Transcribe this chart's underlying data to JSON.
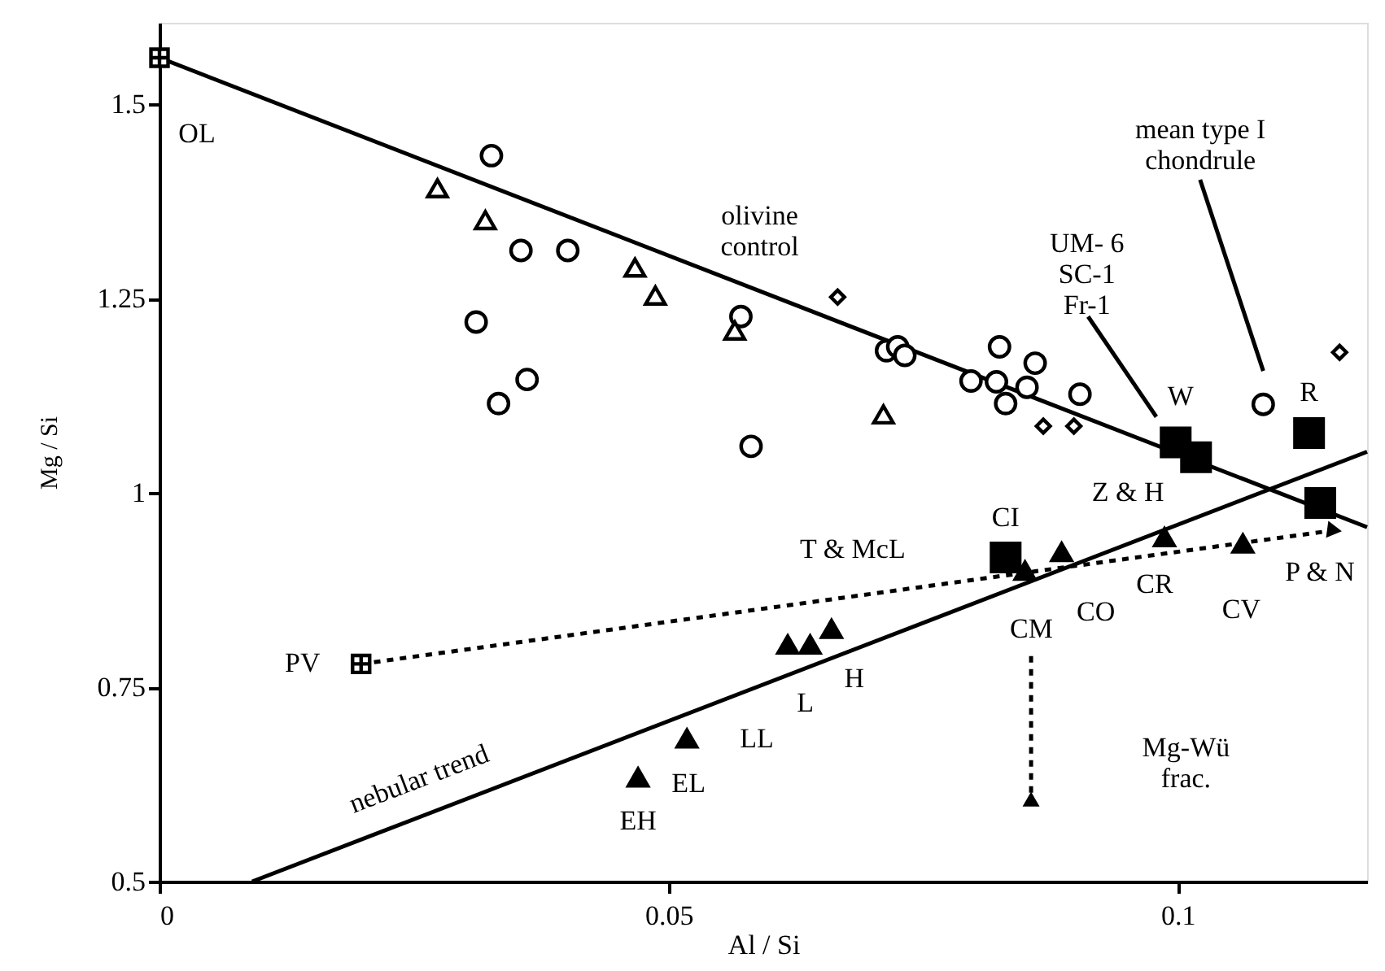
{
  "chart_data": {
    "type": "scatter",
    "xlabel": "Al / Si",
    "ylabel": "Mg / Si",
    "xlim": [
      0,
      0.1186
    ],
    "ylim": [
      0.5,
      1.605
    ],
    "xticks": [
      0,
      0.05,
      0.1
    ],
    "yticks": [
      0.5,
      0.75,
      1,
      1.25,
      1.5
    ],
    "grid": false,
    "annotations": [
      {
        "text": "OL",
        "x": 0,
        "y": 1.56
      },
      "olivine\ncontrol",
      "UM- 6\nSC-1\nFr-1",
      "mean type I\nchondrule",
      {
        "text": "W",
        "x": 0.0998,
        "y": 1.065
      },
      {
        "text": "R",
        "x": 0.1129,
        "y": 1.077
      },
      "Z & H",
      {
        "text": "CI",
        "x": 0.0831,
        "y": 0.917
      },
      "T & McL",
      {
        "text": "PV",
        "x": 0.0198,
        "y": 0.78
      },
      "nebular trend",
      {
        "text": "EH",
        "x": 0.047,
        "y": 0.634
      },
      {
        "text": "EL",
        "x": 0.0518,
        "y": 0.684
      },
      {
        "text": "LL",
        "x": 0.0617,
        "y": 0.805
      },
      {
        "text": "L",
        "x": 0.0639,
        "y": 0.805
      },
      {
        "text": "H",
        "x": 0.066,
        "y": 0.825
      },
      {
        "text": "CM",
        "x": 0.085,
        "y": 0.9
      },
      {
        "text": "CO",
        "x": 0.0886,
        "y": 0.924
      },
      {
        "text": "CR",
        "x": 0.0987,
        "y": 0.943
      },
      {
        "text": "CV",
        "x": 0.1064,
        "y": 0.935
      },
      {
        "text": "P & N",
        "x": 0.1154,
        "y": 0.952
      },
      "Mg-Wü\nfrac."
    ],
    "series": [
      {
        "type": "line",
        "color": "#000000",
        "line_style": "solid",
        "x": [
          0,
          0.1186
        ],
        "values": [
          1.56,
          0.956
        ]
      },
      {
        "type": "line",
        "color": "#000000",
        "line_style": "solid",
        "x": [
          0.0091,
          0.1186
        ],
        "values": [
          0.5,
          1.053
        ]
      },
      {
        "type": "line",
        "color": "#000000",
        "line_style": "dotted",
        "x": [
          0.0198,
          0.1154
        ],
        "values": [
          0.78,
          0.952
        ]
      },
      {
        "type": "line",
        "color": "#000000",
        "line_style": "dotted",
        "x": [
          0.0856,
          0.0856
        ],
        "values": [
          0.79,
          0.606
        ]
      },
      {
        "type": "line",
        "color": "#000000",
        "line_style": "solid",
        "x": [
          0.0912,
          0.0979
        ],
        "values": [
          1.227,
          1.098
        ]
      },
      {
        "type": "line",
        "color": "#000000",
        "line_style": "solid",
        "x": [
          0.1022,
          0.1084
        ],
        "values": [
          1.403,
          1.157
        ]
      },
      {
        "type": "scatter",
        "color": "#ffffff",
        "marker": "cross",
        "x": [
          0,
          0.0198
        ],
        "values": [
          1.56,
          0.78
        ]
      },
      {
        "type": "scatter",
        "color": "#ffffff",
        "marker": "circle",
        "x": [
          0.0326,
          0.0355,
          0.0401,
          0.0311,
          0.0571,
          0.0361,
          0.0333,
          0.0581,
          0.0714,
          0.0725,
          0.0732,
          0.0825,
          0.0797,
          0.0822,
          0.086,
          0.0831,
          0.0852,
          0.0904
        ],
        "values": [
          1.434,
          1.312,
          1.312,
          1.22,
          1.227,
          1.146,
          1.115,
          1.06,
          1.183,
          1.188,
          1.177,
          1.188,
          1.144,
          1.143,
          1.167,
          1.115,
          1.136,
          1.127
        ]
      },
      {
        "type": "scatter",
        "color": "#ffffff",
        "marker": "triangle",
        "x": [
          0.0273,
          0.032,
          0.0467,
          0.0487,
          0.0565,
          0.0711
        ],
        "values": [
          1.392,
          1.351,
          1.29,
          1.254,
          1.209,
          1.101
        ]
      },
      {
        "type": "scatter",
        "color": "#000000",
        "marker": "triangle",
        "x": [
          0.047,
          0.0518,
          0.0617,
          0.0639,
          0.066,
          0.085,
          0.0886,
          0.0987,
          0.1064
        ],
        "values": [
          0.634,
          0.684,
          0.805,
          0.805,
          0.825,
          0.9,
          0.924,
          0.943,
          0.935
        ]
      },
      {
        "type": "scatter",
        "color": "#000000",
        "marker": "square",
        "x": [
          0.0831,
          0.0998,
          0.1018,
          0.1129,
          0.114
        ],
        "values": [
          0.917,
          1.065,
          1.046,
          1.077,
          0.987
        ]
      },
      {
        "type": "scatter",
        "color": "#ffffff",
        "marker": "diamond",
        "x": [
          0.0666,
          0.0868,
          0.0898,
          0.1159
        ],
        "values": [
          1.252,
          1.086,
          1.086,
          1.181
        ]
      },
      {
        "type": "scatter",
        "color": "#ffffff",
        "marker": "circle",
        "x": [
          0.1084
        ],
        "values": [
          1.114
        ]
      }
    ]
  }
}
